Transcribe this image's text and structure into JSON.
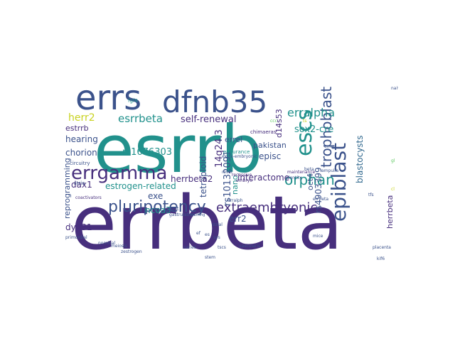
{
  "palette": {
    "dark_purple": "#472f7d",
    "indigo": "#3b528b",
    "teal": "#21918c",
    "slate": "#31688e",
    "green": "#5ec962",
    "yellow": "#c8d21f",
    "violet": "#440154"
  },
  "words": [
    {
      "text": "errbeta",
      "size": 104,
      "color": "#472f7d",
      "rotate": 0
    },
    {
      "text": "esrrb",
      "size": 92,
      "color": "#21918c",
      "rotate": 0
    },
    {
      "text": "errs",
      "size": 48,
      "color": "#3b528b",
      "rotate": 0
    },
    {
      "text": "dfnb35",
      "size": 42,
      "color": "#3b528b",
      "rotate": 0
    },
    {
      "text": "errgamma",
      "size": 26,
      "color": "#472f7d",
      "rotate": 0
    },
    {
      "text": "escs",
      "size": 30,
      "color": "#21918c",
      "rotate": -90
    },
    {
      "text": "epiblast",
      "size": 28,
      "color": "#3b528b",
      "rotate": -90
    },
    {
      "text": "trophoblast",
      "size": 20,
      "color": "#3b528b",
      "rotate": -90
    },
    {
      "text": "orphan",
      "size": 20,
      "color": "#21918c",
      "rotate": 0
    },
    {
      "text": "pluripotency",
      "size": 22,
      "color": "#3b528b",
      "rotate": 0
    },
    {
      "text": "extraembryonic",
      "size": 18,
      "color": "#472f7d",
      "rotate": 0
    },
    {
      "text": "erralpha",
      "size": 16,
      "color": "#21918c",
      "rotate": 0
    },
    {
      "text": "esrrbeta",
      "size": 15,
      "color": "#21918c",
      "rotate": 0
    },
    {
      "text": "herr2",
      "size": 14,
      "color": "#c8d21f",
      "rotate": 0
    },
    {
      "text": "estrrb",
      "size": 11,
      "color": "#472f7d",
      "rotate": 0
    },
    {
      "text": "hearing",
      "size": 12,
      "color": "#3b528b",
      "rotate": 0
    },
    {
      "text": "chorion",
      "size": 12,
      "color": "#3b528b",
      "rotate": 0
    },
    {
      "text": "rs1676303",
      "size": 13,
      "color": "#21918c",
      "rotate": 0
    },
    {
      "text": "self-renewal",
      "size": 13,
      "color": "#472f7d",
      "rotate": 0
    },
    {
      "text": "tetraploid",
      "size": 12,
      "color": "#3b528b",
      "rotate": -90
    },
    {
      "text": "14q24.3",
      "size": 13,
      "color": "#472f7d",
      "rotate": -90
    },
    {
      "text": "rs10132091",
      "size": 13,
      "color": "#3b528b",
      "rotate": -90
    },
    {
      "text": "d14s53",
      "size": 11,
      "color": "#472f7d",
      "rotate": -90
    },
    {
      "text": "sox2-cre",
      "size": 13,
      "color": "#21918c",
      "rotate": 0
    },
    {
      "text": "blastocysts",
      "size": 12,
      "color": "#31688e",
      "rotate": -90
    },
    {
      "text": "errel",
      "size": 11,
      "color": "#3b528b",
      "rotate": 0
    },
    {
      "text": "pakistan",
      "size": 11,
      "color": "#3b528b",
      "rotate": 0
    },
    {
      "text": "episc",
      "size": 12,
      "color": "#3b528b",
      "rotate": 0
    },
    {
      "text": "herrbeta2",
      "size": 12,
      "color": "#472f7d",
      "rotate": 0
    },
    {
      "text": "dax1",
      "size": 12,
      "color": "#472f7d",
      "rotate": 0
    },
    {
      "text": "estrogen-related",
      "size": 12,
      "color": "#21918c",
      "rotate": 0
    },
    {
      "text": "nano",
      "size": 11,
      "color": "#21918c",
      "rotate": -90
    },
    {
      "text": "interactome",
      "size": 12,
      "color": "#472f7d",
      "rotate": 0
    },
    {
      "text": "oct4",
      "size": 11,
      "color": "#3b528b",
      "rotate": -90
    },
    {
      "text": "rs4903399",
      "size": 12,
      "color": "#3b528b",
      "rotate": -90
    },
    {
      "text": "reprogramming",
      "size": 11,
      "color": "#3b528b",
      "rotate": -90
    },
    {
      "text": "exe",
      "size": 12,
      "color": "#3b528b",
      "rotate": 0
    },
    {
      "text": "ncoa3",
      "size": 12,
      "color": "#21918c",
      "rotate": 0
    },
    {
      "text": "herrbeta",
      "size": 11,
      "color": "#472f7d",
      "rotate": -90
    },
    {
      "text": "dy131",
      "size": 12,
      "color": "#472f7d",
      "rotate": 0
    },
    {
      "text": "err2",
      "size": 12,
      "color": "#3b528b",
      "rotate": 0
    },
    {
      "text": "circuitry",
      "size": 7,
      "color": "#3b528b",
      "rotate": 0
    },
    {
      "text": "stria",
      "size": 7,
      "color": "#3b528b",
      "rotate": 0
    },
    {
      "text": "coactivators",
      "size": 6,
      "color": "#472f7d",
      "rotate": 0
    },
    {
      "text": "chimaeras",
      "size": 7,
      "color": "#472f7d",
      "rotate": 0
    },
    {
      "text": "endurance",
      "size": 7,
      "color": "#21918c",
      "rotate": 0
    },
    {
      "text": "extra-embryonic",
      "size": 6,
      "color": "#3b528b",
      "rotate": 0
    },
    {
      "text": "recessive",
      "size": 6,
      "color": "#472f7d",
      "rotate": 0
    },
    {
      "text": "embryo",
      "size": 6,
      "color": "#472f7d",
      "rotate": 0
    },
    {
      "text": "maintenance",
      "size": 6,
      "color": "#472f7d",
      "rotate": 0
    },
    {
      "text": "identity",
      "size": 6,
      "color": "#3b528b",
      "rotate": 0
    },
    {
      "text": "beta",
      "size": 6,
      "color": "#3b528b",
      "rotate": 0
    },
    {
      "text": "ampulla",
      "size": 6,
      "color": "#3b528b",
      "rotate": 0
    },
    {
      "text": "errbeta",
      "size": 6,
      "color": "#3b528b",
      "rotate": 0
    },
    {
      "text": "erralph",
      "size": 6,
      "color": "#3b528b",
      "rotate": 0
    },
    {
      "text": "gastrulation",
      "size": 6,
      "color": "#3b528b",
      "rotate": 0
    },
    {
      "text": "giant",
      "size": 6,
      "color": "#3b528b",
      "rotate": 0
    },
    {
      "text": "profiling",
      "size": 5,
      "color": "#3b528b",
      "rotate": 0
    },
    {
      "text": "strial",
      "size": 6,
      "color": "#3b528b",
      "rotate": 0
    },
    {
      "text": "tscs",
      "size": 6,
      "color": "#3b528b",
      "rotate": 0
    },
    {
      "text": "vascularis",
      "size": 6,
      "color": "#3b528b",
      "rotate": 0
    },
    {
      "text": "caries",
      "size": 6,
      "color": "#3b528b",
      "rotate": 0
    },
    {
      "text": "meiosis",
      "size": 6,
      "color": "#3b528b",
      "rotate": 0
    },
    {
      "text": "zestrogen",
      "size": 6,
      "color": "#3b528b",
      "rotate": 0
    },
    {
      "text": "naive",
      "size": 6,
      "color": "#3b528b",
      "rotate": 0
    },
    {
      "text": "placenta",
      "size": 6,
      "color": "#3b528b",
      "rotate": 0
    },
    {
      "text": "kif6",
      "size": 6,
      "color": "#3b528b",
      "rotate": 0
    },
    {
      "text": "primordial",
      "size": 6,
      "color": "#3b528b",
      "rotate": 0
    },
    {
      "text": "stem",
      "size": 6,
      "color": "#3b528b",
      "rotate": 0
    },
    {
      "text": "reset",
      "size": 6,
      "color": "#3b528b",
      "rotate": 0
    },
    {
      "text": "mice",
      "size": 6,
      "color": "#3b528b",
      "rotate": 0
    },
    {
      "text": "fgf4",
      "size": 7,
      "color": "#21918c",
      "rotate": 0
    },
    {
      "text": "erre",
      "size": 6,
      "color": "#3b528b",
      "rotate": 0
    },
    {
      "text": "tfs",
      "size": 6,
      "color": "#3b528b",
      "rotate": 0
    },
    {
      "text": "ef",
      "size": 6,
      "color": "#3b528b",
      "rotate": 0
    },
    {
      "text": "es",
      "size": 6,
      "color": "#3b528b",
      "rotate": 0
    },
    {
      "text": "sys",
      "size": 6,
      "color": "#3b528b",
      "rotate": 0
    },
    {
      "text": "nominal",
      "size": 6,
      "color": "#3b528b",
      "rotate": 0
    },
    {
      "text": "ccc",
      "size": 6,
      "color": "#5ec962",
      "rotate": 0
    },
    {
      "text": "ts",
      "size": 6,
      "color": "#c8d21f",
      "rotate": 0
    },
    {
      "text": "gl",
      "size": 6,
      "color": "#5ec962",
      "rotate": 0
    },
    {
      "text": "cl",
      "size": 6,
      "color": "#c8d21f",
      "rotate": 0
    }
  ]
}
